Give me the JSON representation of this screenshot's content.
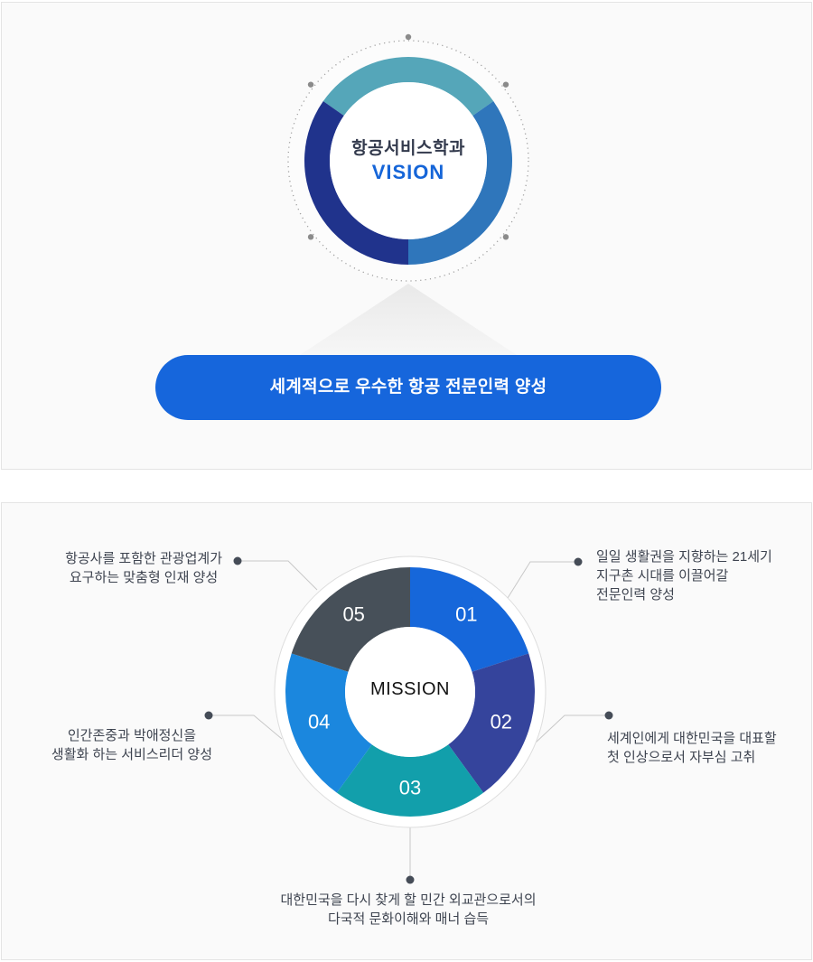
{
  "palette": {
    "card_bg": "#fafafa",
    "card_border": "#e4e4e4",
    "accent_blue": "#1666dc",
    "note_text": "#3e4450",
    "connector_line": "#c8c8c8",
    "connector_dot": "#454c57",
    "orbit_dot": "#8b8b8b"
  },
  "vision": {
    "department": "항공서비스학과",
    "title": "VISION",
    "goal": "세계적으로 우수한 항공 전문인력 양성",
    "ring_segments": [
      {
        "name": "teal",
        "color": "#55a6b9",
        "start": -55,
        "end": 55
      },
      {
        "name": "blue",
        "color": "#2f76bb",
        "start": 55,
        "end": 180
      },
      {
        "name": "navy",
        "color": "#20338c",
        "start": 180,
        "end": 305
      }
    ],
    "orbit_dot_angles": [
      0,
      52,
      128,
      -52,
      -128
    ]
  },
  "mission": {
    "title": "MISSION",
    "segments": [
      {
        "num": "01",
        "color": "#1667da",
        "start": 0,
        "end": 72,
        "text": "일일 생활권을 지향하는 21세기\n지구촌 시대를 이끌어갈\n전문인력 양성"
      },
      {
        "num": "02",
        "color": "#35449c",
        "start": 72,
        "end": 144,
        "text": "세계인에게 대한민국을 대표할\n첫 인상으로서 자부심 고취"
      },
      {
        "num": "03",
        "color": "#129fab",
        "start": 144,
        "end": 216,
        "text": "대한민국을 다시 찾게 할 민간 외교관으로서의\n다국적 문화이해와 매너 습득"
      },
      {
        "num": "04",
        "color": "#1b87de",
        "start": 216,
        "end": 288,
        "text": "인간존중과 박애정신을\n생활화 하는 서비스리더 양성"
      },
      {
        "num": "05",
        "color": "#475059",
        "start": 288,
        "end": 360,
        "text": "항공사를 포함한 관광업계가\n요구하는 맞춤형 인재 양성"
      }
    ]
  }
}
